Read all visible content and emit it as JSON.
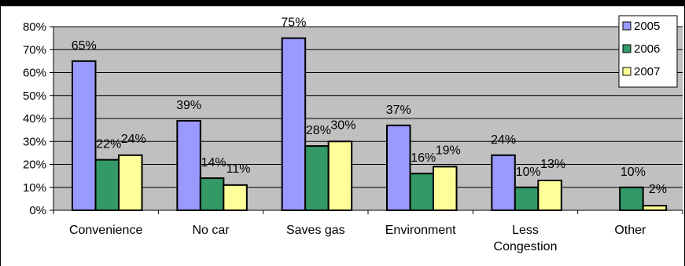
{
  "chart_data": {
    "type": "bar",
    "categories": [
      "Convenience",
      "No car",
      "Saves gas",
      "Environment",
      "Less Congestion",
      "Other"
    ],
    "category_lines": [
      [
        "Convenience"
      ],
      [
        "No car"
      ],
      [
        "Saves gas"
      ],
      [
        "Environment"
      ],
      [
        "Less",
        "Congestion"
      ],
      [
        "Other"
      ]
    ],
    "series": [
      {
        "name": "2005",
        "color": "#9999ff",
        "values": [
          65,
          39,
          75,
          37,
          24,
          null
        ],
        "labels": [
          "65%",
          "39%",
          "75%",
          "37%",
          "24%",
          ""
        ]
      },
      {
        "name": "2006",
        "color": "#339966",
        "values": [
          22,
          14,
          28,
          16,
          10,
          10
        ],
        "labels": [
          "22%",
          "14%",
          "28%",
          "16%",
          "10%",
          "10%"
        ]
      },
      {
        "name": "2007",
        "color": "#ffff99",
        "values": [
          24,
          11,
          30,
          19,
          13,
          2
        ],
        "labels": [
          "24%",
          "11%",
          "30%",
          "19%",
          "13%",
          "2%"
        ]
      }
    ],
    "yticks": [
      "0%",
      "10%",
      "20%",
      "30%",
      "40%",
      "50%",
      "60%",
      "70%",
      "80%"
    ],
    "ylim": [
      0,
      80
    ],
    "grid": true,
    "plot_background": "#c0c0c0",
    "legend_position": "top-right",
    "title": "",
    "xlabel": "",
    "ylabel": ""
  }
}
